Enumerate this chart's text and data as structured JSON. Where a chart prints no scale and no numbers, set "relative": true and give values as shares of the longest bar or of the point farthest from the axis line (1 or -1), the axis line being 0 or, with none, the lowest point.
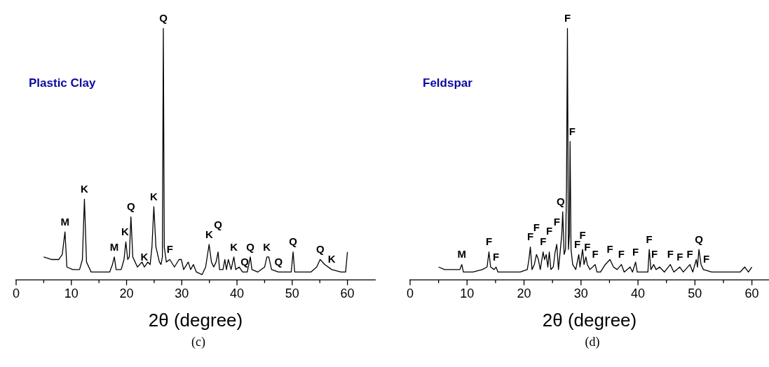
{
  "chart_data": [
    {
      "type": "line",
      "title": "Plastic Clay",
      "xlabel": "2θ (degree)",
      "relative": true,
      "xlim": [
        0,
        65
      ],
      "xticks": [
        0,
        {
          "value": 5,
          "label": null
        },
        10,
        {
          "value": 15,
          "label": null
        },
        20,
        {
          "value": 25,
          "label": null
        },
        30,
        {
          "value": 35,
          "label": null
        },
        40,
        {
          "value": 45,
          "label": null
        },
        50,
        {
          "value": 55,
          "label": null
        },
        60
      ],
      "series": [
        {
          "color": "#000000",
          "x": [
            5.0,
            6.47,
            7.72,
            8.35,
            8.85,
            9.19,
            10.24,
            11.49,
            12.0,
            12.37,
            12.75,
            13.59,
            15.26,
            16.94,
            17.44,
            17.78,
            18.11,
            19.03,
            19.54,
            19.87,
            20.21,
            20.5,
            20.79,
            21.13,
            21.55,
            21.97,
            22.8,
            23.22,
            23.85,
            24.27,
            24.6,
            24.94,
            25.32,
            25.95,
            26.24,
            26.49,
            26.66,
            26.83,
            27.2,
            27.83,
            28.67,
            29.51,
            29.92,
            30.34,
            31.18,
            31.6,
            32.1,
            32.65,
            33.69,
            34.32,
            34.95,
            35.37,
            35.79,
            36.21,
            36.58,
            36.84,
            37.46,
            37.8,
            38.09,
            38.43,
            38.93,
            39.43,
            39.77,
            40.4,
            41.02,
            41.86,
            42.41,
            42.7,
            43.75,
            45.0,
            45.42,
            45.76,
            46.26,
            47.52,
            49.19,
            49.82,
            50.16,
            50.45,
            51.71,
            53.38,
            54.43,
            55.06,
            55.9,
            57.15,
            58.83,
            59.67,
            60.0
          ],
          "values": [
            0.09,
            0.08,
            0.08,
            0.1,
            0.19,
            0.05,
            0.04,
            0.04,
            0.08,
            0.32,
            0.07,
            0.03,
            0.03,
            0.03,
            0.06,
            0.09,
            0.04,
            0.04,
            0.08,
            0.15,
            0.08,
            0.09,
            0.25,
            0.09,
            0.07,
            0.05,
            0.07,
            0.05,
            0.07,
            0.06,
            0.13,
            0.29,
            0.13,
            0.07,
            0.06,
            0.09,
            1.0,
            0.13,
            0.07,
            0.08,
            0.05,
            0.08,
            0.08,
            0.04,
            0.07,
            0.04,
            0.06,
            0.03,
            0.02,
            0.05,
            0.14,
            0.07,
            0.05,
            0.07,
            0.11,
            0.04,
            0.04,
            0.08,
            0.04,
            0.08,
            0.04,
            0.09,
            0.04,
            0.05,
            0.03,
            0.03,
            0.09,
            0.04,
            0.03,
            0.05,
            0.09,
            0.09,
            0.04,
            0.03,
            0.03,
            0.03,
            0.11,
            0.03,
            0.03,
            0.03,
            0.05,
            0.08,
            0.06,
            0.04,
            0.03,
            0.03,
            0.11
          ]
        }
      ],
      "annotations": [
        {
          "text": "M",
          "x": 8.85,
          "y": 0.19
        },
        {
          "text": "K",
          "x": 12.37,
          "y": 0.32
        },
        {
          "text": "M",
          "x": 17.78,
          "y": 0.09
        },
        {
          "text": "K",
          "x": 19.87,
          "y": 0.15
        },
        {
          "text": "Q",
          "x": 20.79,
          "y": 0.25
        },
        {
          "text": "K",
          "x": 23.22,
          "y": 0.05
        },
        {
          "text": "K",
          "x": 24.94,
          "y": 0.29
        },
        {
          "text": "Q",
          "x": 26.66,
          "y": 1.0
        },
        {
          "text": "F",
          "x": 27.83,
          "y": 0.08
        },
        {
          "text": "K",
          "x": 34.95,
          "y": 0.14
        },
        {
          "text": "Q",
          "x": 36.58,
          "y": 0.11
        },
        {
          "text": "K",
          "x": 39.43,
          "y": 0.09
        },
        {
          "text": "Q",
          "x": 41.02,
          "y": 0.03
        },
        {
          "text": "Q",
          "x": 42.41,
          "y": 0.09
        },
        {
          "text": "K",
          "x": 45.42,
          "y": 0.09
        },
        {
          "text": "Q",
          "x": 47.52,
          "y": 0.03
        },
        {
          "text": "Q",
          "x": 50.16,
          "y": 0.11
        },
        {
          "text": "Q",
          "x": 55.06,
          "y": 0.08
        },
        {
          "text": "K",
          "x": 57.15,
          "y": 0.04
        },
        "(c)"
      ]
    },
    {
      "type": "line",
      "title": "Feldspar",
      "xlabel": "2θ (degree)",
      "relative": true,
      "xlim": [
        0,
        63
      ],
      "xticks": [
        0,
        {
          "value": 5,
          "label": null
        },
        10,
        {
          "value": 15,
          "label": null
        },
        20,
        {
          "value": 25,
          "label": null
        },
        30,
        {
          "value": 35,
          "label": null
        },
        40,
        {
          "value": 45,
          "label": null
        },
        50,
        {
          "value": 55,
          "label": null
        },
        60
      ],
      "series": [
        {
          "color": "#000000",
          "x": [
            5.0,
            6.04,
            7.28,
            8.74,
            9.07,
            9.36,
            11.02,
            12.68,
            13.51,
            13.84,
            14.13,
            14.75,
            15.09,
            15.42,
            17.25,
            19.32,
            20.57,
            20.86,
            21.11,
            21.4,
            21.81,
            22.18,
            22.52,
            22.85,
            23.35,
            23.6,
            23.89,
            24.18,
            24.43,
            24.72,
            25.13,
            25.46,
            25.75,
            26.04,
            26.38,
            26.63,
            26.79,
            27.04,
            27.29,
            27.46,
            27.62,
            27.79,
            27.96,
            28.08,
            28.25,
            28.54,
            29.08,
            29.61,
            29.82,
            30.28,
            30.53,
            30.86,
            31.11,
            31.57,
            32.48,
            32.81,
            33.43,
            34.26,
            35.09,
            35.71,
            36.34,
            37.09,
            37.58,
            38.62,
            39.04,
            39.58,
            39.87,
            40.91,
            41.74,
            41.98,
            42.27,
            42.77,
            43.18,
            43.81,
            44.64,
            45.68,
            46.3,
            47.34,
            47.96,
            49.12,
            49.62,
            50.24,
            50.45,
            50.7,
            51.07,
            51.49,
            52.94,
            54.6,
            56.68,
            57.92,
            58.75,
            59.38,
            60.0
          ],
          "values": [
            0.05,
            0.04,
            0.04,
            0.04,
            0.06,
            0.03,
            0.03,
            0.04,
            0.05,
            0.11,
            0.05,
            0.04,
            0.05,
            0.03,
            0.03,
            0.03,
            0.04,
            0.08,
            0.13,
            0.04,
            0.06,
            0.1,
            0.08,
            0.04,
            0.11,
            0.08,
            0.1,
            0.05,
            0.11,
            0.04,
            0.05,
            0.11,
            0.14,
            0.04,
            0.12,
            0.18,
            0.27,
            0.1,
            0.12,
            0.37,
            1.0,
            0.12,
            0.18,
            0.55,
            0.12,
            0.06,
            0.04,
            0.1,
            0.05,
            0.12,
            0.06,
            0.09,
            0.06,
            0.04,
            0.06,
            0.03,
            0.03,
            0.06,
            0.08,
            0.05,
            0.04,
            0.06,
            0.03,
            0.05,
            0.03,
            0.07,
            0.03,
            0.03,
            0.03,
            0.12,
            0.04,
            0.06,
            0.04,
            0.05,
            0.03,
            0.06,
            0.03,
            0.05,
            0.03,
            0.06,
            0.03,
            0.08,
            0.05,
            0.12,
            0.06,
            0.04,
            0.03,
            0.03,
            0.03,
            0.03,
            0.05,
            0.03,
            0.05
          ]
        }
      ],
      "annotations": [
        {
          "text": "M",
          "x": 9.07,
          "y": 0.06
        },
        {
          "text": "F",
          "x": 13.84,
          "y": 0.11
        },
        {
          "text": "F",
          "x": 15.09,
          "y": 0.05
        },
        {
          "text": "F",
          "x": 21.11,
          "y": 0.13
        },
        {
          "text": "F",
          "x": 22.18,
          "y": 0.1
        },
        {
          "text": "F",
          "x": 23.35,
          "y": 0.11
        },
        {
          "text": "F",
          "x": 24.43,
          "y": 0.11
        },
        {
          "text": "F",
          "x": 25.75,
          "y": 0.14
        },
        {
          "text": "Q",
          "x": 26.79,
          "y": 0.27
        },
        {
          "text": "F",
          "x": 27.62,
          "y": 1.0
        },
        {
          "text": "F",
          "x": 28.08,
          "y": 0.55
        },
        {
          "text": "F",
          "x": 29.61,
          "y": 0.1
        },
        {
          "text": "F",
          "x": 30.28,
          "y": 0.12
        },
        {
          "text": "F",
          "x": 30.86,
          "y": 0.09
        },
        {
          "text": "F",
          "x": 32.48,
          "y": 0.06
        },
        {
          "text": "F",
          "x": 35.09,
          "y": 0.08
        },
        {
          "text": "F",
          "x": 37.09,
          "y": 0.06
        },
        {
          "text": "F",
          "x": 39.58,
          "y": 0.07
        },
        {
          "text": "F",
          "x": 41.98,
          "y": 0.12
        },
        {
          "text": "F",
          "x": 42.77,
          "y": 0.06
        },
        {
          "text": "F",
          "x": 45.68,
          "y": 0.06
        },
        {
          "text": "F",
          "x": 47.34,
          "y": 0.05
        },
        {
          "text": "F",
          "x": 49.12,
          "y": 0.06
        },
        {
          "text": "Q",
          "x": 50.7,
          "y": 0.12
        },
        {
          "text": "F",
          "x": 51.49,
          "y": 0.04
        },
        "(d)"
      ]
    }
  ]
}
